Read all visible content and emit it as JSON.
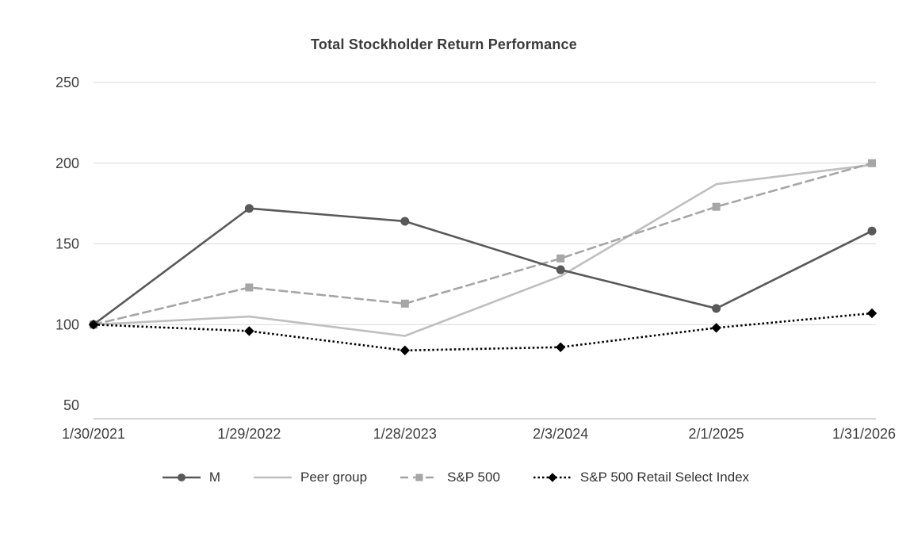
{
  "chart_data": {
    "type": "line",
    "title": "Total Stockholder Return Performance",
    "x_labels": [
      "1/30/2021",
      "1/29/2022",
      "1/28/2023",
      "2/3/2024",
      "2/1/2025",
      "1/31/2026"
    ],
    "y_ticks": [
      50,
      100,
      150,
      200,
      250
    ],
    "ylim": [
      50,
      250
    ],
    "grid": true,
    "legend_position": "bottom",
    "colors": {
      "gridline": "#d9d9d9",
      "axis_line": "#bfbfbf",
      "tick_label": "#404040"
    },
    "series": [
      {
        "name": "M",
        "values": [
          100,
          172,
          164,
          134,
          110,
          158
        ],
        "color": "#595959",
        "style": "solid",
        "marker": "circle"
      },
      {
        "name": "Peer group",
        "values": [
          100,
          105,
          93,
          130,
          187,
          199
        ],
        "color": "#bfbfbf",
        "style": "solid",
        "marker": "none"
      },
      {
        "name": "S&P 500",
        "values": [
          100,
          123,
          113,
          141,
          173,
          200
        ],
        "color": "#a6a6a6",
        "style": "dashed",
        "marker": "square"
      },
      {
        "name": "S&P 500 Retail Select Index",
        "values": [
          100,
          96,
          84,
          86,
          98,
          107
        ],
        "color": "#000000",
        "style": "dotted",
        "marker": "diamond"
      }
    ]
  }
}
